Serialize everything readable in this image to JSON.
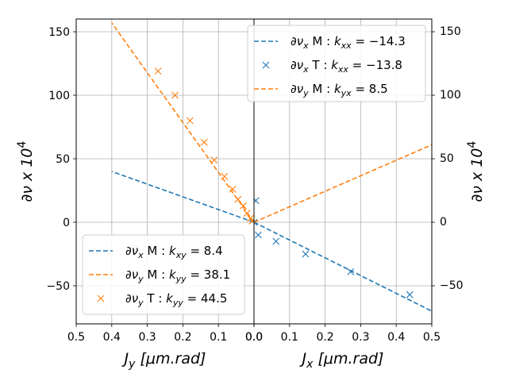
{
  "chart_data": {
    "type": "line",
    "left_panel": {
      "xlabel": "J_y [μm.rad]",
      "ylabel": "∂ν x 10^4",
      "xlim": [
        0.5,
        0.0
      ],
      "ylim": [
        -80,
        160
      ],
      "xticks": [
        "0.5",
        "0.4",
        "0.3",
        "0.2",
        "0.1",
        "0.0"
      ],
      "yticks": [
        "−50",
        "0",
        "50",
        "100",
        "150"
      ],
      "grid": true,
      "legend_position": "lower-left",
      "series": [
        {
          "name": "∂ν_x M : k_xy = 8.4",
          "style": "dashed",
          "color": "#1f77b4",
          "x": [
            0.0,
            0.4
          ],
          "y": [
            0,
            40
          ]
        },
        {
          "name": "∂ν_y M : k_yy = 38.1",
          "style": "dashed",
          "color": "#ff7f0e",
          "x": [
            0.0,
            0.4
          ],
          "y": [
            0,
            157
          ]
        },
        {
          "name": "∂ν_y T : k_yy = 44.5",
          "style": "x-markers",
          "color": "#ff7f0e",
          "x": [
            0.27,
            0.222,
            0.18,
            0.14,
            0.112,
            0.083,
            0.06,
            0.045,
            0.03,
            0.02,
            0.01,
            0.005
          ],
          "y": [
            119,
            100,
            80,
            63,
            49,
            36,
            26,
            18,
            13,
            7,
            3,
            1
          ]
        }
      ]
    },
    "right_panel": {
      "xlabel": "J_x [μm.rad]",
      "ylabel": "∂ν x 10^4",
      "xlim": [
        0.0,
        0.5
      ],
      "ylim": [
        -80,
        160
      ],
      "xticks": [
        "0.0",
        "0.1",
        "0.2",
        "0.3",
        "0.4",
        "0.5"
      ],
      "yticks": [
        "−50",
        "0",
        "50",
        "100",
        "150"
      ],
      "grid": true,
      "legend_position": "top-right",
      "series": [
        {
          "name": "∂ν_x M : k_xx = −14.3",
          "style": "dashed",
          "color": "#1f77b4",
          "x": [
            0.0,
            0.5
          ],
          "y": [
            0,
            -70
          ]
        },
        {
          "name": "∂ν_x T : k_xx = −13.8",
          "style": "x-markers",
          "color": "#1f77b4",
          "x": [
            0.0,
            0.005,
            0.012,
            0.062,
            0.145,
            0.272,
            0.438
          ],
          "y": [
            0,
            17,
            -10,
            -15,
            -25,
            -39,
            -57
          ]
        },
        {
          "name": "∂ν_y M : k_yx = 8.5",
          "style": "dashed",
          "color": "#ff7f0e",
          "x": [
            0.0,
            0.5
          ],
          "y": [
            0,
            61
          ]
        }
      ]
    }
  }
}
